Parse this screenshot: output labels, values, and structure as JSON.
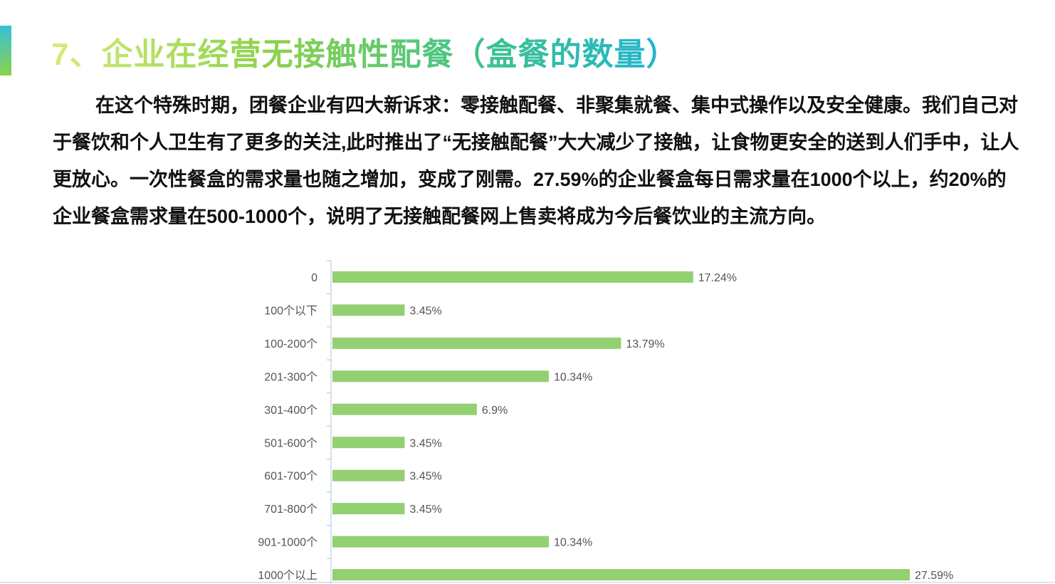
{
  "slide": {
    "title": "7、企业在经营无接触性配餐（盒餐的数量）",
    "paragraph": "在这个特殊时期，团餐企业有四大新诉求：零接触配餐、非聚集就餐、集中式操作以及安全健康。我们自己对于餐饮和个人卫生有了更多的关注,此时推出了“无接触配餐”大大减少了接触，让食物更安全的送到人们手中，让人更放心。一次性餐盒的需求量也随之增加，变成了刚需。27.59%的企业餐盒每日需求量在1000个以上，约20%的企业餐盒需求量在500-1000个，说明了无接触配餐网上售卖将成为今后餐饮业的主流方向。"
  },
  "colors": {
    "bar": "#93d072",
    "axis": "#aec4d6",
    "label": "#555555",
    "accent_top": "#36c1d6",
    "accent_bottom": "#8bd24a"
  },
  "chart_data": {
    "type": "bar",
    "orientation": "horizontal",
    "categories": [
      "0",
      "100个以下",
      "100-200个",
      "201-300个",
      "301-400个",
      "501-600个",
      "601-700个",
      "701-800个",
      "901-1000个",
      "1000个以上"
    ],
    "values": [
      17.24,
      3.45,
      13.79,
      10.34,
      6.9,
      3.45,
      3.45,
      3.45,
      10.34,
      27.59
    ],
    "value_labels": [
      "17.24%",
      "3.45%",
      "13.79%",
      "10.34%",
      "6.9%",
      "3.45%",
      "3.45%",
      "3.45%",
      "10.34%",
      "27.59%"
    ],
    "unit": "%",
    "xlim": [
      0,
      27.59
    ],
    "grid": false,
    "legend": "none"
  }
}
